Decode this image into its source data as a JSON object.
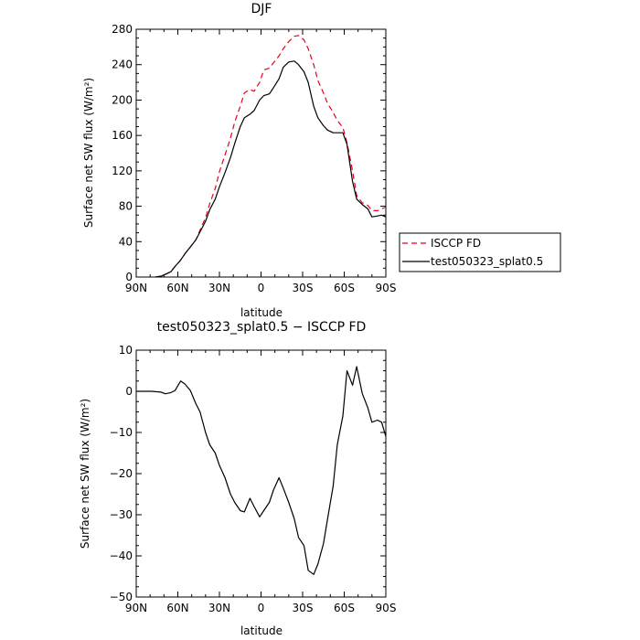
{
  "figure_title": "",
  "chart_data": [
    {
      "type": "line",
      "title": "DJF",
      "xlabel": "latitude",
      "ylabel": "Surface net SW flux (W/m²)",
      "xlim": [
        90,
        -90
      ],
      "ylim": [
        0,
        280
      ],
      "x_tick_values": [
        90,
        60,
        30,
        0,
        -30,
        -60,
        -90
      ],
      "x_tick_labels": [
        "90N",
        "60N",
        "30N",
        "0",
        "30S",
        "60S",
        "90S"
      ],
      "y_tick_values": [
        0,
        40,
        80,
        120,
        160,
        200,
        240,
        280
      ],
      "y_tick_labels": [
        "0",
        "40",
        "80",
        "120",
        "160",
        "200",
        "240",
        "280"
      ],
      "legend": {
        "placement": "right",
        "entries": [
          {
            "label": "ISCCP FD",
            "color": "#e8001c",
            "dash": "dashed"
          },
          {
            "label": "test050323_splat0.5",
            "color": "#000000",
            "dash": "solid"
          }
        ]
      },
      "series": [
        {
          "name": "ISCCP FD",
          "color": "#e8001c",
          "x": [
            76,
            72,
            69,
            65,
            62,
            58,
            55,
            51,
            47,
            44,
            40,
            37,
            33,
            30,
            26,
            22,
            19,
            15,
            12,
            8,
            5,
            1,
            -2,
            -6,
            -9,
            -13,
            -16,
            -20,
            -24,
            -27,
            -31,
            -34,
            -38,
            -41,
            -45,
            -48,
            -52,
            -55,
            -59,
            -62,
            -66,
            -69,
            -73,
            -77,
            -80,
            -84,
            -87,
            -90
          ],
          "y": [
            0,
            1,
            3,
            6,
            12,
            19,
            26,
            34,
            42,
            53,
            67,
            83,
            100,
            119,
            138,
            157,
            175,
            193,
            208,
            212,
            210,
            220,
            234,
            236,
            242,
            250,
            258,
            266,
            272,
            273,
            268,
            258,
            240,
            222,
            208,
            196,
            186,
            177,
            169,
            152,
            120,
            92,
            84,
            81,
            75,
            75,
            77,
            79
          ]
        },
        {
          "name": "test050323_splat0.5",
          "color": "#000000",
          "x": [
            76,
            72,
            69,
            65,
            62,
            58,
            55,
            51,
            47,
            44,
            40,
            37,
            33,
            30,
            26,
            22,
            19,
            15,
            12,
            8,
            5,
            1,
            -2,
            -6,
            -9,
            -13,
            -16,
            -20,
            -24,
            -27,
            -31,
            -34,
            -38,
            -41,
            -45,
            -48,
            -52,
            -55,
            -59,
            -62,
            -66,
            -69,
            -73,
            -77,
            -80,
            -84,
            -87,
            -90
          ],
          "y": [
            0,
            1,
            3,
            6,
            12,
            19,
            26,
            34,
            42,
            51,
            63,
            76,
            88,
            102,
            118,
            135,
            151,
            170,
            180,
            184,
            188,
            200,
            205,
            207,
            214,
            224,
            237,
            243,
            244,
            240,
            232,
            220,
            193,
            180,
            171,
            166,
            163,
            163,
            163,
            150,
            108,
            88,
            82,
            77,
            68,
            69,
            70,
            68
          ]
        }
      ]
    },
    {
      "type": "line",
      "title": "test050323_splat0.5 − ISCCP FD",
      "xlabel": "latitude",
      "ylabel": "Surface net SW flux (W/m²)",
      "xlim": [
        90,
        -90
      ],
      "ylim": [
        -50,
        10
      ],
      "x_tick_values": [
        90,
        60,
        30,
        0,
        -30,
        -60,
        -90
      ],
      "x_tick_labels": [
        "90N",
        "60N",
        "30N",
        "0",
        "30S",
        "60S",
        "90S"
      ],
      "y_tick_values": [
        -50,
        -40,
        -30,
        -20,
        -10,
        0,
        10
      ],
      "y_tick_labels": [
        "−50",
        "−40",
        "−30",
        "−20",
        "−10",
        "0",
        "10"
      ],
      "series": [
        {
          "color": "#000000",
          "x": [
            90,
            86,
            83,
            79,
            76,
            72,
            69,
            65,
            62,
            58,
            55,
            51,
            47,
            44,
            40,
            37,
            33,
            30,
            26,
            22,
            19,
            15,
            12,
            8,
            5,
            1,
            -2,
            -6,
            -9,
            -13,
            -16,
            -20,
            -24,
            -27,
            -31,
            -34,
            -38,
            -41,
            -45,
            -48,
            -52,
            -55,
            -59,
            -62,
            -66,
            -69,
            -73,
            -77,
            -80,
            -84,
            -87,
            -90
          ],
          "y": [
            0,
            0,
            0,
            0,
            -0.1,
            -0.2,
            -0.6,
            -0.3,
            0.2,
            2.5,
            1.8,
            0.2,
            -3,
            -5,
            -10,
            -13,
            -15,
            -18,
            -21,
            -25,
            -27,
            -29,
            -29.3,
            -26,
            -28,
            -30.5,
            -29,
            -27,
            -24,
            -21,
            -23.5,
            -27,
            -31,
            -35.5,
            -37.5,
            -43.5,
            -44.5,
            -42,
            -37,
            -31,
            -23,
            -13,
            -6,
            5,
            1.5,
            6,
            -0.5,
            -4,
            -7.5,
            -7,
            -7.5,
            -11
          ]
        }
      ]
    }
  ]
}
